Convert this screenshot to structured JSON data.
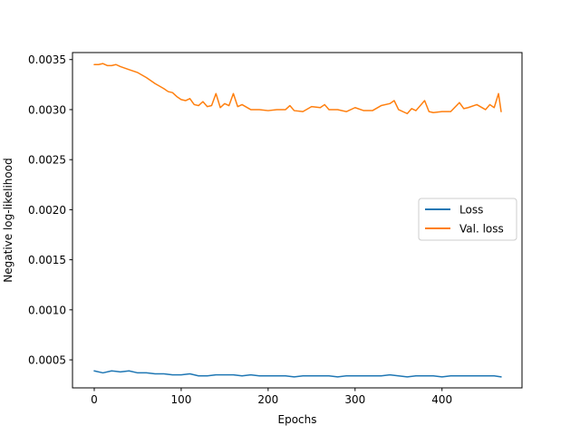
{
  "chart_data": {
    "type": "line",
    "title": "",
    "xlabel": "Epochs",
    "ylabel": "Negative log-likelihood",
    "xlim": [
      -25,
      492
    ],
    "ylim": [
      0.00022,
      0.00357
    ],
    "x_ticks": [
      0,
      100,
      200,
      300,
      400
    ],
    "x_tick_labels": [
      "0",
      "100",
      "200",
      "300",
      "400"
    ],
    "y_ticks": [
      0.0005,
      0.001,
      0.0015,
      0.002,
      0.0025,
      0.003,
      0.0035
    ],
    "y_tick_labels": [
      "0.0005",
      "0.0010",
      "0.0015",
      "0.0020",
      "0.0025",
      "0.0030",
      "0.0035"
    ],
    "grid": false,
    "legend_position": "center-right",
    "series": [
      {
        "name": "Loss",
        "color": "#1f77b4",
        "x": [
          0,
          10,
          20,
          30,
          40,
          50,
          60,
          70,
          80,
          90,
          100,
          110,
          120,
          130,
          140,
          150,
          160,
          170,
          180,
          190,
          200,
          210,
          220,
          230,
          240,
          250,
          260,
          270,
          280,
          290,
          300,
          310,
          320,
          330,
          340,
          350,
          360,
          370,
          380,
          390,
          400,
          410,
          420,
          430,
          440,
          450,
          460,
          468
        ],
        "y": [
          0.00039,
          0.00037,
          0.00039,
          0.00038,
          0.00039,
          0.00037,
          0.00037,
          0.00036,
          0.00036,
          0.00035,
          0.00035,
          0.00036,
          0.00034,
          0.00034,
          0.00035,
          0.00035,
          0.00035,
          0.00034,
          0.00035,
          0.00034,
          0.00034,
          0.00034,
          0.00034,
          0.00033,
          0.00034,
          0.00034,
          0.00034,
          0.00034,
          0.00033,
          0.00034,
          0.00034,
          0.00034,
          0.00034,
          0.00034,
          0.00035,
          0.00034,
          0.00033,
          0.00034,
          0.00034,
          0.00034,
          0.00033,
          0.00034,
          0.00034,
          0.00034,
          0.00034,
          0.00034,
          0.00034,
          0.00033
        ]
      },
      {
        "name": "Val. loss",
        "color": "#ff7f0e",
        "x": [
          0,
          5,
          10,
          15,
          20,
          25,
          30,
          40,
          50,
          60,
          70,
          80,
          85,
          90,
          95,
          100,
          105,
          110,
          115,
          120,
          125,
          130,
          135,
          140,
          145,
          150,
          155,
          160,
          165,
          170,
          180,
          190,
          200,
          210,
          220,
          225,
          230,
          240,
          250,
          260,
          265,
          270,
          280,
          290,
          300,
          310,
          320,
          330,
          340,
          345,
          350,
          360,
          365,
          370,
          380,
          385,
          390,
          400,
          410,
          420,
          425,
          430,
          440,
          450,
          455,
          460,
          465,
          468
        ],
        "y": [
          0.00345,
          0.00345,
          0.00346,
          0.00344,
          0.00344,
          0.00345,
          0.00343,
          0.0034,
          0.00337,
          0.00332,
          0.00326,
          0.00321,
          0.00318,
          0.00317,
          0.00313,
          0.0031,
          0.00309,
          0.00311,
          0.00305,
          0.00304,
          0.00308,
          0.00303,
          0.00304,
          0.00316,
          0.00302,
          0.00306,
          0.00304,
          0.00316,
          0.00303,
          0.00305,
          0.003,
          0.003,
          0.00299,
          0.003,
          0.003,
          0.00304,
          0.00299,
          0.00298,
          0.00303,
          0.00302,
          0.00305,
          0.003,
          0.003,
          0.00298,
          0.00302,
          0.00299,
          0.00299,
          0.00304,
          0.00306,
          0.00309,
          0.003,
          0.00296,
          0.00301,
          0.00299,
          0.00309,
          0.00298,
          0.00297,
          0.00298,
          0.00298,
          0.00307,
          0.00301,
          0.00302,
          0.00305,
          0.003,
          0.00305,
          0.00302,
          0.00316,
          0.00298
        ]
      }
    ]
  }
}
